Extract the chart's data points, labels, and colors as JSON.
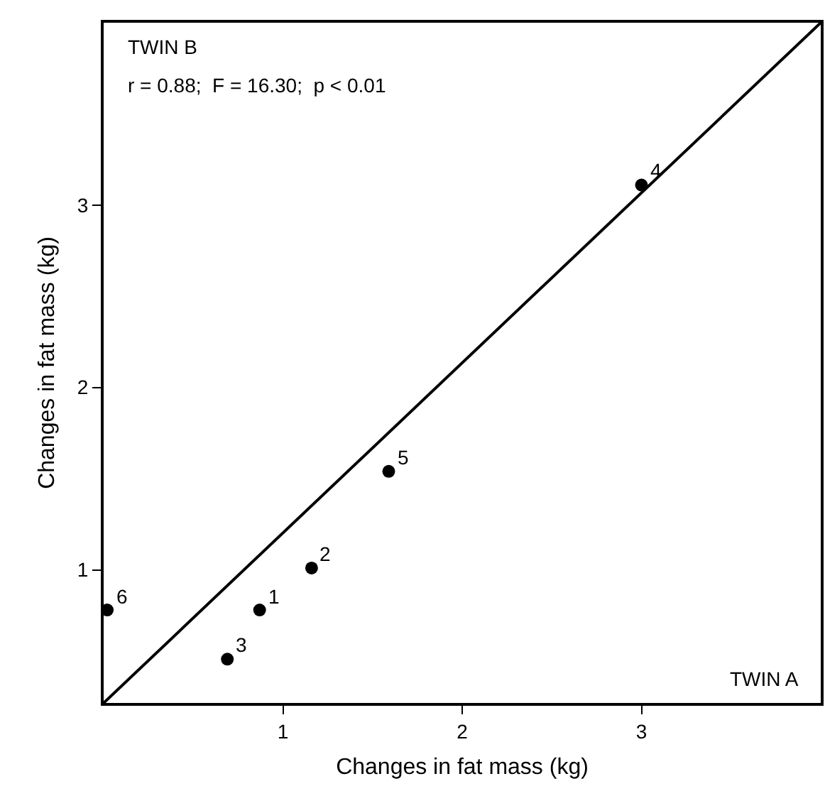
{
  "chart_data": {
    "type": "scatter",
    "xlabel": "Changes in fat mass (kg)",
    "ylabel": "Changes in fat mass (kg)",
    "x": [
      0.87,
      1.16,
      0.69,
      3.0,
      1.59,
      0.02
    ],
    "series": [
      {
        "color": "#000000",
        "values": [
          0.78,
          1.01,
          0.51,
          3.11,
          1.54,
          0.78
        ]
      },
      {
        "type": "line",
        "color": "#000000",
        "x": [
          0,
          4
        ],
        "values": [
          0.27,
          4
        ],
        "marker": "none"
      }
    ],
    "xlim": [
      0,
      4
    ],
    "ylim": [
      0.27,
      4
    ],
    "xticks": [
      1,
      2,
      3
    ],
    "yticks": [
      1,
      2,
      3
    ],
    "grid": false,
    "marker": "circle",
    "line_style": "solid",
    "annotations": [
      "TWIN B",
      "r = 0.88;  F = 16.30;  p < 0.01",
      "TWIN A",
      {
        "text": "1",
        "x": 0.87,
        "y": 0.78
      },
      {
        "text": "2",
        "x": 1.16,
        "y": 1.01
      },
      {
        "text": "3",
        "x": 0.69,
        "y": 0.51
      },
      {
        "text": "4",
        "x": 3.0,
        "y": 3.11
      },
      {
        "text": "5",
        "x": 1.59,
        "y": 1.54
      },
      {
        "text": "6",
        "x": 0.02,
        "y": 0.78
      }
    ]
  }
}
